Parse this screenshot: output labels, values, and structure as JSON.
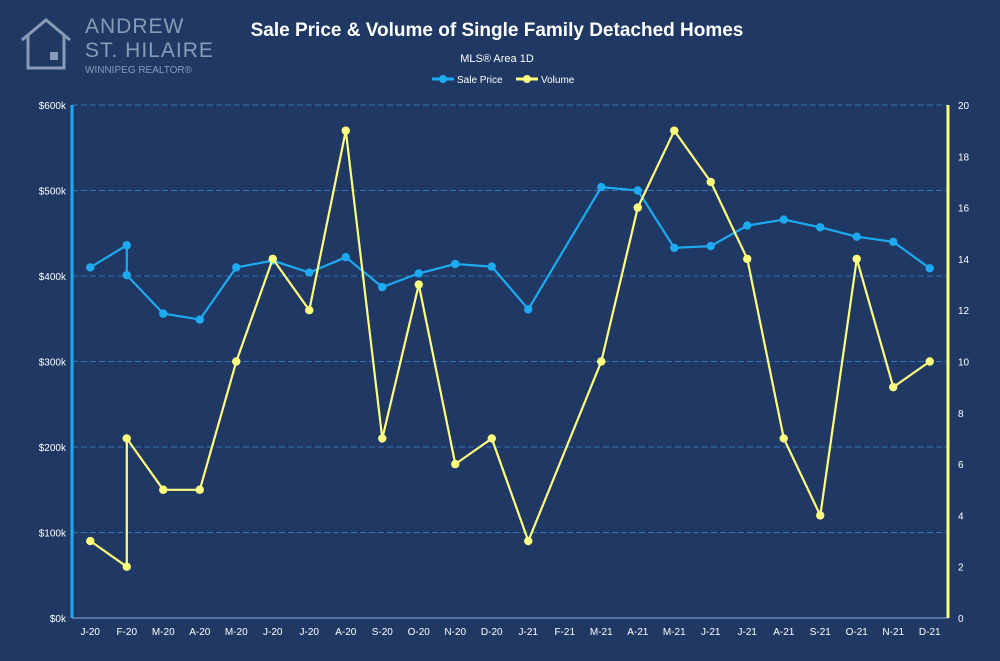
{
  "logo": {
    "line1": "ANDREW",
    "line2": "ST. HILAIRE",
    "line3": "WINNIPEG REALTOR®"
  },
  "colors": {
    "background": "#1f3864",
    "sale_price": "#1eaaf1",
    "volume": "#ffff7f",
    "grid": "#2e75b6"
  },
  "chart_data": {
    "type": "line",
    "title": "Sale Price & Volume of Single Family Detached Homes",
    "subtitle": "MLS® Area 1D",
    "legend_position": "top-center",
    "grid": true,
    "x": [
      "J-20",
      "F-20",
      "M-20",
      "A-20",
      "M-20",
      "J-20",
      "J-20",
      "A-20",
      "S-20",
      "O-20",
      "N-20",
      "D-20",
      "J-21",
      "F-21",
      "M-21",
      "A-21",
      "M-21",
      "J-21",
      "J-21",
      "A-21",
      "S-21",
      "O-21",
      "N-21",
      "D-21"
    ],
    "y_left": {
      "ylim": [
        0,
        600000
      ],
      "ticks": [
        0,
        100000,
        200000,
        300000,
        400000,
        500000,
        600000
      ],
      "tick_labels": [
        "$0k",
        "$100k",
        "$200k",
        "$300k",
        "$400k",
        "$500k",
        "$600k"
      ]
    },
    "y_right": {
      "ylim": [
        0,
        20
      ],
      "ticks": [
        0,
        2,
        4,
        6,
        8,
        10,
        12,
        14,
        16,
        18,
        20
      ],
      "tick_labels": [
        "0",
        "2",
        "4",
        "6",
        "8",
        "10",
        "12",
        "14",
        "16",
        "18",
        "20"
      ]
    },
    "series": [
      {
        "name": "Sale Price",
        "axis": "left",
        "color": "#1eaaf1",
        "points": [
          {
            "i": 0,
            "y": 410000
          },
          {
            "i": 1,
            "y": 436000
          },
          {
            "i": 1,
            "y": 401000
          },
          {
            "i": 2,
            "y": 356000
          },
          {
            "i": 3,
            "y": 349000
          },
          {
            "i": 4,
            "y": 410000
          },
          {
            "i": 5,
            "y": 418000
          },
          {
            "i": 6,
            "y": 404000
          },
          {
            "i": 7,
            "y": 422000
          },
          {
            "i": 8,
            "y": 387000
          },
          {
            "i": 9,
            "y": 403000
          },
          {
            "i": 10,
            "y": 414000
          },
          {
            "i": 11,
            "y": 411000
          },
          {
            "i": 12,
            "y": 361000
          },
          {
            "i": 14,
            "y": 504000
          },
          {
            "i": 15,
            "y": 500000
          },
          {
            "i": 16,
            "y": 433000
          },
          {
            "i": 17,
            "y": 435000
          },
          {
            "i": 18,
            "y": 459000
          },
          {
            "i": 19,
            "y": 466000
          },
          {
            "i": 20,
            "y": 457000
          },
          {
            "i": 21,
            "y": 446000
          },
          {
            "i": 22,
            "y": 440000
          },
          {
            "i": 23,
            "y": 409000
          }
        ]
      },
      {
        "name": "Volume",
        "axis": "right",
        "color": "#ffff7f",
        "points": [
          {
            "i": 0,
            "y": 3
          },
          {
            "i": 1,
            "y": 2
          },
          {
            "i": 1,
            "y": 7
          },
          {
            "i": 2,
            "y": 5
          },
          {
            "i": 3,
            "y": 5
          },
          {
            "i": 4,
            "y": 10
          },
          {
            "i": 5,
            "y": 14
          },
          {
            "i": 6,
            "y": 12
          },
          {
            "i": 7,
            "y": 19
          },
          {
            "i": 8,
            "y": 7
          },
          {
            "i": 9,
            "y": 13
          },
          {
            "i": 10,
            "y": 6
          },
          {
            "i": 11,
            "y": 7
          },
          {
            "i": 12,
            "y": 3
          },
          {
            "i": 14,
            "y": 10
          },
          {
            "i": 15,
            "y": 16
          },
          {
            "i": 16,
            "y": 19
          },
          {
            "i": 17,
            "y": 17
          },
          {
            "i": 18,
            "y": 14
          },
          {
            "i": 19,
            "y": 7
          },
          {
            "i": 20,
            "y": 4
          },
          {
            "i": 21,
            "y": 14
          },
          {
            "i": 22,
            "y": 9
          },
          {
            "i": 23,
            "y": 10
          }
        ]
      }
    ]
  }
}
